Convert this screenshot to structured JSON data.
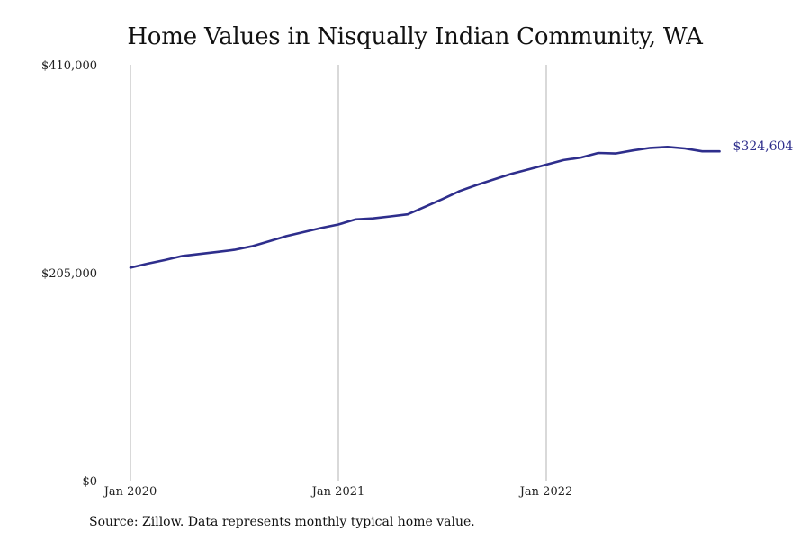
{
  "chart_data": {
    "type": "line",
    "title": "Home Values in Nisqually Indian Community, WA",
    "xlabel": "",
    "ylabel": "",
    "ylim": [
      0,
      410000
    ],
    "y_ticks": [
      {
        "value": 0,
        "label": "$0"
      },
      {
        "value": 205000,
        "label": "$205,000"
      },
      {
        "value": 410000,
        "label": "$410,000"
      }
    ],
    "x_ticks": [
      {
        "value": "2020-01",
        "label": "Jan 2020"
      },
      {
        "value": "2021-01",
        "label": "Jan 2021"
      },
      {
        "value": "2022-01",
        "label": "Jan 2022"
      }
    ],
    "x_grid": true,
    "line_color": "#2e2e8c",
    "series": [
      {
        "x": [
          "2020-01",
          "2020-02",
          "2020-03",
          "2020-04",
          "2020-05",
          "2020-06",
          "2020-07",
          "2020-08",
          "2020-09",
          "2020-10",
          "2020-11",
          "2020-12",
          "2021-01",
          "2021-02",
          "2021-03",
          "2021-04",
          "2021-05",
          "2021-06",
          "2021-07",
          "2021-08",
          "2021-09",
          "2021-10",
          "2021-11",
          "2021-12",
          "2022-01",
          "2022-02",
          "2022-03",
          "2022-04",
          "2022-05",
          "2022-06",
          "2022-07",
          "2022-08",
          "2022-09",
          "2022-10",
          "2022-11"
        ],
        "values": [
          210000,
          214000,
          217500,
          221500,
          223500,
          225500,
          227500,
          231000,
          236000,
          241000,
          245000,
          249000,
          252500,
          257500,
          258500,
          260500,
          262500,
          270000,
          277500,
          285500,
          291500,
          297000,
          302500,
          307000,
          311500,
          316000,
          318500,
          323000,
          322500,
          325500,
          328000,
          329000,
          327500,
          324604,
          324604
        ],
        "end_label": "$324,604"
      }
    ]
  },
  "source_note": "Source: Zillow. Data represents monthly typical home value."
}
